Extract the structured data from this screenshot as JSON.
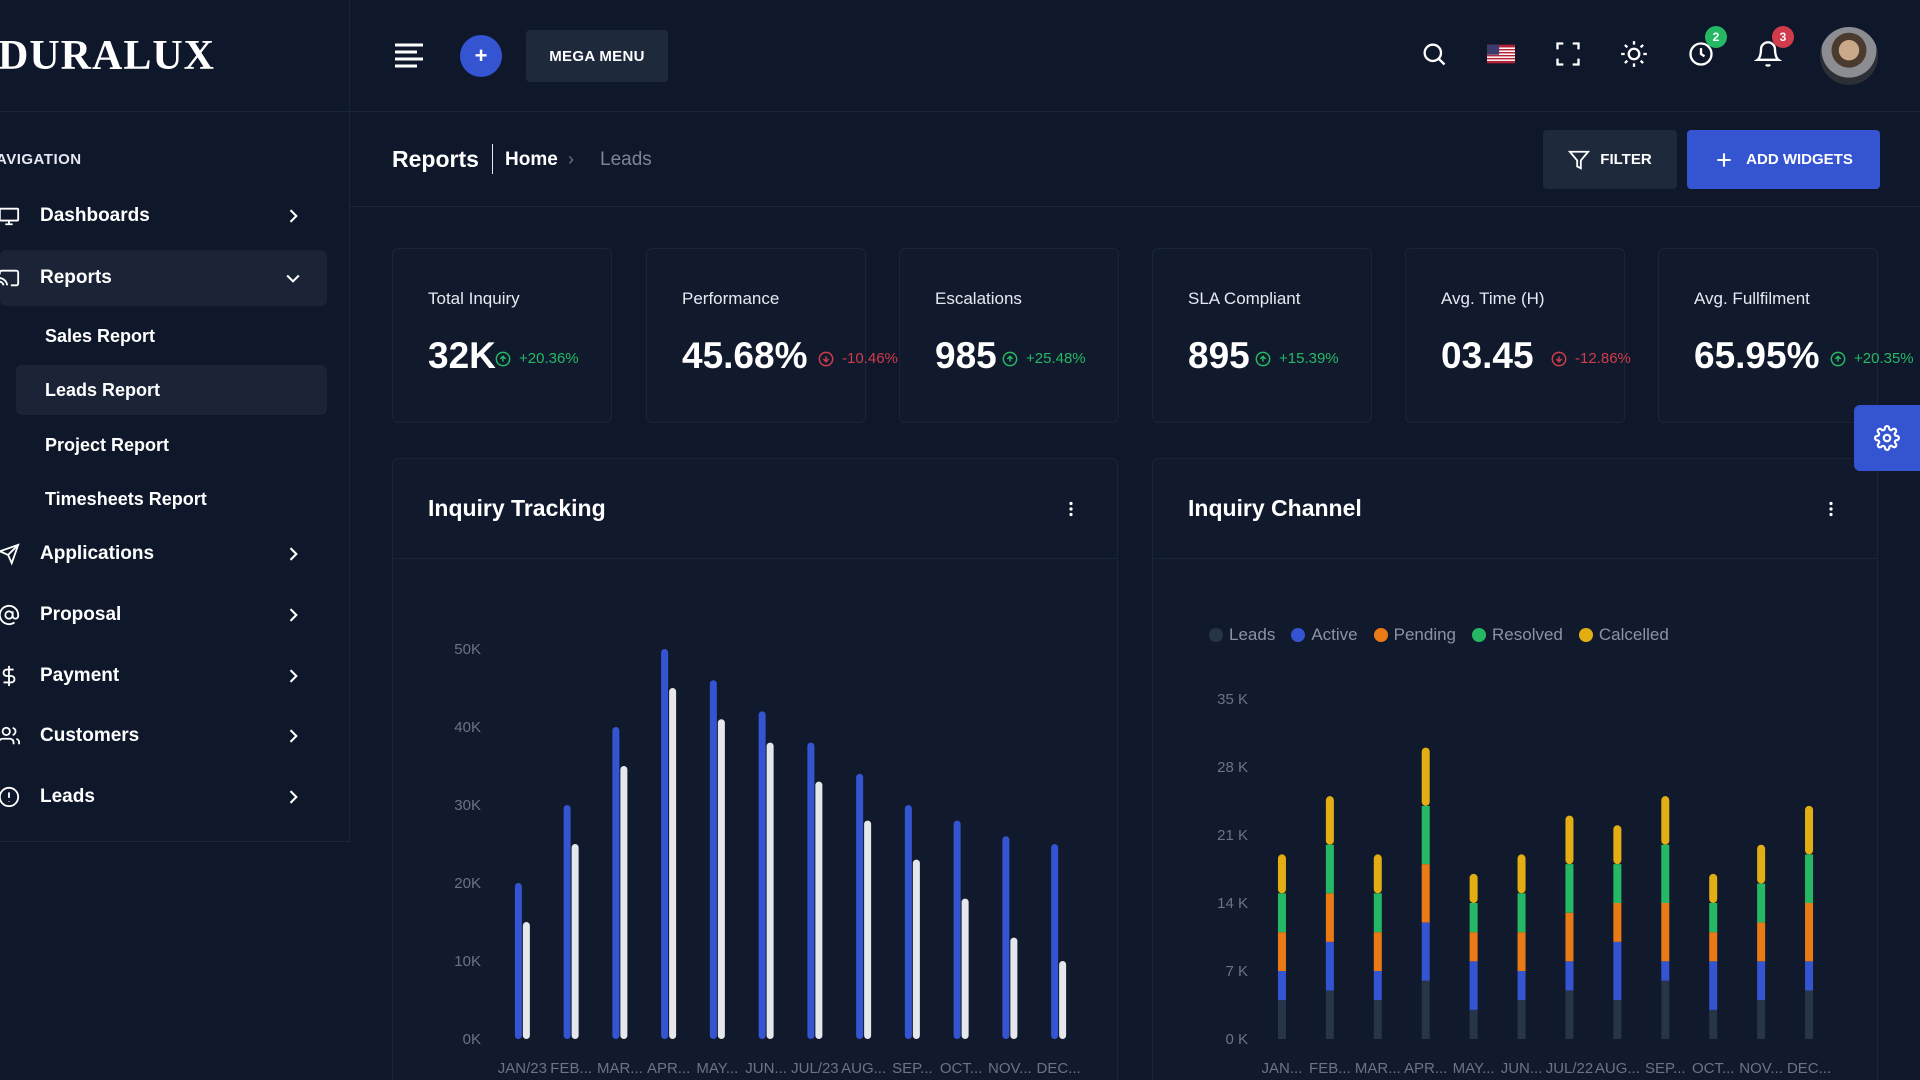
{
  "brand": {
    "logo": "DURALUX"
  },
  "sidebar": {
    "caption": "AVIGATION",
    "items": [
      {
        "label": "Dashboards",
        "icon": "monitor-icon"
      },
      {
        "label": "Reports",
        "icon": "cast-icon",
        "expanded": true
      },
      {
        "label": "Applications",
        "icon": "send-icon"
      },
      {
        "label": "Proposal",
        "icon": "at-sign-icon"
      },
      {
        "label": "Payment",
        "icon": "dollar-icon"
      },
      {
        "label": "Customers",
        "icon": "users-icon"
      },
      {
        "label": "Leads",
        "icon": "alert-circle-icon"
      }
    ],
    "subitems": [
      {
        "label": "Sales Report"
      },
      {
        "label": "Leads Report",
        "active": true
      },
      {
        "label": "Project Report"
      },
      {
        "label": "Timesheets Report"
      }
    ]
  },
  "header": {
    "plus_label": "+",
    "mega_menu_label": "MEGA MENU",
    "timer_badge": "2",
    "bell_badge": "3"
  },
  "page": {
    "title": "Reports",
    "crumb_home": "Home",
    "crumb_sep": "›",
    "crumb_current": "Leads",
    "filter_label": "FILTER",
    "add_widgets_label": "ADD WIDGETS"
  },
  "kpis": [
    {
      "title": "Total Inquiry",
      "value": "32K",
      "trend": "+20.36%",
      "up": true
    },
    {
      "title": "Performance",
      "value": "45.68%",
      "trend": "-10.46%",
      "up": false
    },
    {
      "title": "Escalations",
      "value": "985",
      "trend": "+25.48%",
      "up": true
    },
    {
      "title": "SLA Compliant",
      "value": "895",
      "trend": "+15.39%",
      "up": true
    },
    {
      "title": "Avg. Time (H)",
      "value": "03.45",
      "trend": "-12.86%",
      "up": false
    },
    {
      "title": "Avg. Fullfilment",
      "value": "65.95%",
      "trend": "+20.35%",
      "up": true
    }
  ],
  "colors": {
    "accent": "#3454d1",
    "positive": "#25b865",
    "negative": "#d13b4c",
    "bar_primary": "#3454d1",
    "bar_secondary": "#e5e7eb",
    "leads": "#283447",
    "active": "#3454d1",
    "pending": "#ea7a16",
    "resolved": "#25b865",
    "cancelled": "#e3ae13"
  },
  "cards": {
    "tracking_title": "Inquiry Tracking",
    "channel_title": "Inquiry Channel"
  },
  "chart_data": [
    {
      "type": "bar",
      "title": "Inquiry Tracking",
      "categories": [
        "JAN/23",
        "FEB...",
        "MAR...",
        "APR...",
        "MAY...",
        "JUN...",
        "JUL/23",
        "AUG...",
        "SEP...",
        "OCT...",
        "NOV...",
        "DEC..."
      ],
      "yticks": [
        "0K",
        "10K",
        "20K",
        "30K",
        "40K",
        "50K"
      ],
      "ylim": [
        0,
        50000
      ],
      "series": [
        {
          "values": [
            20000,
            30000,
            40000,
            50000,
            46000,
            42000,
            38000,
            34000,
            30000,
            28000,
            26000,
            25000
          ]
        },
        {
          "values": [
            15000,
            25000,
            35000,
            45000,
            41000,
            38000,
            33000,
            28000,
            23000,
            18000,
            13000,
            10000
          ]
        }
      ],
      "grid": false
    },
    {
      "type": "bar",
      "stacked": true,
      "title": "Inquiry Channel",
      "categories": [
        "JAN...",
        "FEB...",
        "MAR...",
        "APR...",
        "MAY...",
        "JUN...",
        "JUL/22",
        "AUG...",
        "SEP...",
        "OCT...",
        "NOV...",
        "DEC..."
      ],
      "yticks": [
        "0 K",
        "7 K",
        "14 K",
        "21 K",
        "28 K",
        "35 K"
      ],
      "ylim": [
        0,
        35000
      ],
      "legend_position": "top-left",
      "series": [
        {
          "name": "Leads",
          "values": [
            4000,
            5000,
            4000,
            6000,
            3000,
            4000,
            5000,
            4000,
            6000,
            3000,
            4000,
            5000
          ]
        },
        {
          "name": "Active",
          "values": [
            3000,
            5000,
            3000,
            6000,
            5000,
            3000,
            3000,
            6000,
            2000,
            5000,
            4000,
            3000
          ]
        },
        {
          "name": "Pending",
          "values": [
            4000,
            5000,
            4000,
            6000,
            3000,
            4000,
            5000,
            4000,
            6000,
            3000,
            4000,
            6000
          ]
        },
        {
          "name": "Resolved",
          "values": [
            4000,
            5000,
            4000,
            6000,
            3000,
            4000,
            5000,
            4000,
            6000,
            3000,
            4000,
            5000
          ]
        },
        {
          "name": "Calcelled",
          "values": [
            4000,
            5000,
            4000,
            6000,
            3000,
            4000,
            5000,
            4000,
            5000,
            3000,
            4000,
            5000
          ]
        }
      ],
      "grid": false
    }
  ]
}
